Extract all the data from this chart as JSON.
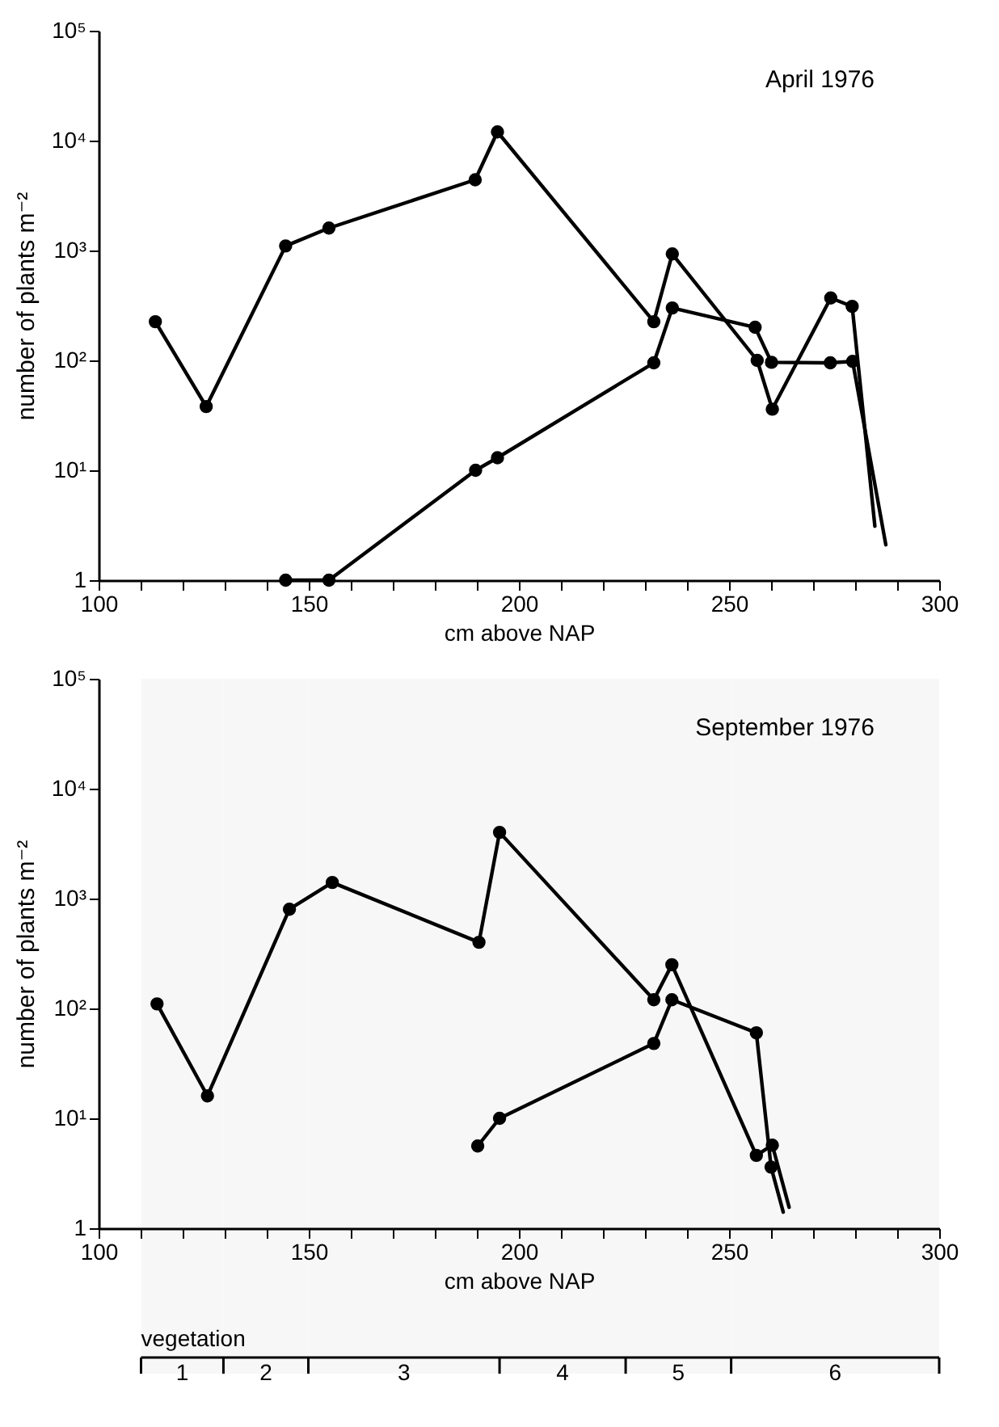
{
  "chart_data": [
    {
      "type": "line",
      "title": "April 1976",
      "xlabel": "cm above NAP",
      "ylabel": "number of plants m⁻²",
      "log": "y",
      "grid": false,
      "marker": "circle",
      "line_style": "solid",
      "xlim": [
        100,
        300
      ],
      "xticks": [
        100,
        {
          "value": 110,
          "label": null
        },
        {
          "value": 120,
          "label": null
        },
        {
          "value": 130,
          "label": null
        },
        {
          "value": 140,
          "label": null
        },
        150,
        {
          "value": 160,
          "label": null
        },
        {
          "value": 170,
          "label": null
        },
        {
          "value": 180,
          "label": null
        },
        {
          "value": 190,
          "label": null
        },
        200,
        {
          "value": 210,
          "label": null
        },
        {
          "value": 220,
          "label": null
        },
        {
          "value": 230,
          "label": null
        },
        {
          "value": 240,
          "label": null
        },
        250,
        {
          "value": 260,
          "label": null
        },
        {
          "value": 270,
          "label": null
        },
        {
          "value": 280,
          "label": null
        },
        {
          "value": 290,
          "label": null
        },
        300
      ],
      "ylim": [
        1,
        100000
      ],
      "yticks": [
        1,
        {
          "value": 10,
          "label": "10¹"
        },
        {
          "value": 100,
          "label": "10²"
        },
        {
          "value": 1000,
          "label": "10³"
        },
        {
          "value": 10000,
          "label": "10⁴"
        },
        {
          "value": 100000,
          "label": "10⁵"
        }
      ],
      "series": [
        {
          "color": "#000000",
          "x": [
            113.5,
            125.6,
            144.5,
            154.8,
            189.6,
            194.9,
            232.1,
            236.5,
            256.7,
            260.3,
            274.2,
            279.3
          ],
          "values": [
            225,
            38,
            1100,
            1600,
            4400,
            12000,
            225,
            930,
            100,
            36,
            370,
            310
          ]
        },
        {
          "color": "#000000",
          "x": [
            144.5,
            154.8,
            189.7,
            194.9,
            232.1,
            236.5,
            256.2,
            260.1,
            274.1,
            279.4
          ],
          "values": [
            1,
            1,
            10,
            13,
            95,
            300,
            200,
            96,
            95,
            98
          ]
        },
        {
          "type": "line",
          "marker": "none",
          "color": "#000000",
          "x": [
            279.3,
            284.7
          ],
          "values": [
            310,
            3.1
          ]
        },
        {
          "type": "line",
          "marker": "none",
          "color": "#000000",
          "x": [
            279.4,
            287.3
          ],
          "values": [
            98,
            2.1
          ]
        }
      ]
    },
    {
      "type": "line",
      "title": "September 1976",
      "xlabel": "cm above NAP",
      "ylabel": "number of plants m⁻²",
      "log": "y",
      "grid": false,
      "marker": "circle",
      "line_style": "solid",
      "xlim": [
        100,
        300
      ],
      "xticks": [
        100,
        {
          "value": 110,
          "label": null
        },
        {
          "value": 120,
          "label": null
        },
        {
          "value": 130,
          "label": null
        },
        {
          "value": 140,
          "label": null
        },
        150,
        {
          "value": 160,
          "label": null
        },
        {
          "value": 170,
          "label": null
        },
        {
          "value": 180,
          "label": null
        },
        {
          "value": 190,
          "label": null
        },
        200,
        {
          "value": 210,
          "label": null
        },
        {
          "value": 220,
          "label": null
        },
        {
          "value": 230,
          "label": null
        },
        {
          "value": 240,
          "label": null
        },
        250,
        {
          "value": 260,
          "label": null
        },
        {
          "value": 270,
          "label": null
        },
        {
          "value": 280,
          "label": null
        },
        {
          "value": 290,
          "label": null
        },
        300
      ],
      "ylim": [
        1,
        100000
      ],
      "yticks": [
        1,
        {
          "value": 10,
          "label": "10¹"
        },
        {
          "value": 100,
          "label": "10²"
        },
        {
          "value": 1000,
          "label": "10³"
        },
        {
          "value": 10000,
          "label": "10⁴"
        },
        {
          "value": 100000,
          "label": "10⁵"
        }
      ],
      "series": [
        {
          "color": "#000000",
          "x": [
            113.9,
            125.9,
            145.4,
            155.6,
            190.5,
            195.4,
            232.1,
            236.4,
            256.5,
            260.3
          ],
          "values": [
            110,
            16,
            800,
            1400,
            400,
            4000,
            120,
            250,
            4.6,
            5.7
          ]
        },
        {
          "color": "#000000",
          "x": [
            190.2,
            195.4,
            232.1,
            236.4,
            256.5,
            260.0
          ],
          "values": [
            5.6,
            10,
            48,
            120,
            60,
            3.6
          ]
        },
        {
          "type": "line",
          "marker": "none",
          "color": "#000000",
          "x": [
            260.3,
            264.3
          ],
          "values": [
            5.7,
            1.55
          ]
        },
        {
          "type": "line",
          "marker": "none",
          "color": "#000000",
          "x": [
            260.0,
            262.9
          ],
          "values": [
            3.6,
            1.4
          ]
        }
      ],
      "annotations": [
        "vegetation"
      ],
      "bands": [
        {
          "axis": "x",
          "from": 110.1,
          "to": 129.7,
          "label": "1"
        },
        {
          "axis": "x",
          "from": 129.7,
          "to": 149.9,
          "label": "2"
        },
        {
          "axis": "x",
          "from": 149.9,
          "to": 195.4,
          "label": "3"
        },
        {
          "axis": "x",
          "from": 195.4,
          "to": 225.4,
          "label": "4"
        },
        {
          "axis": "x",
          "from": 225.4,
          "to": 250.5,
          "label": "5"
        },
        {
          "axis": "x",
          "from": 250.5,
          "to": 300,
          "label": "6"
        }
      ]
    }
  ]
}
